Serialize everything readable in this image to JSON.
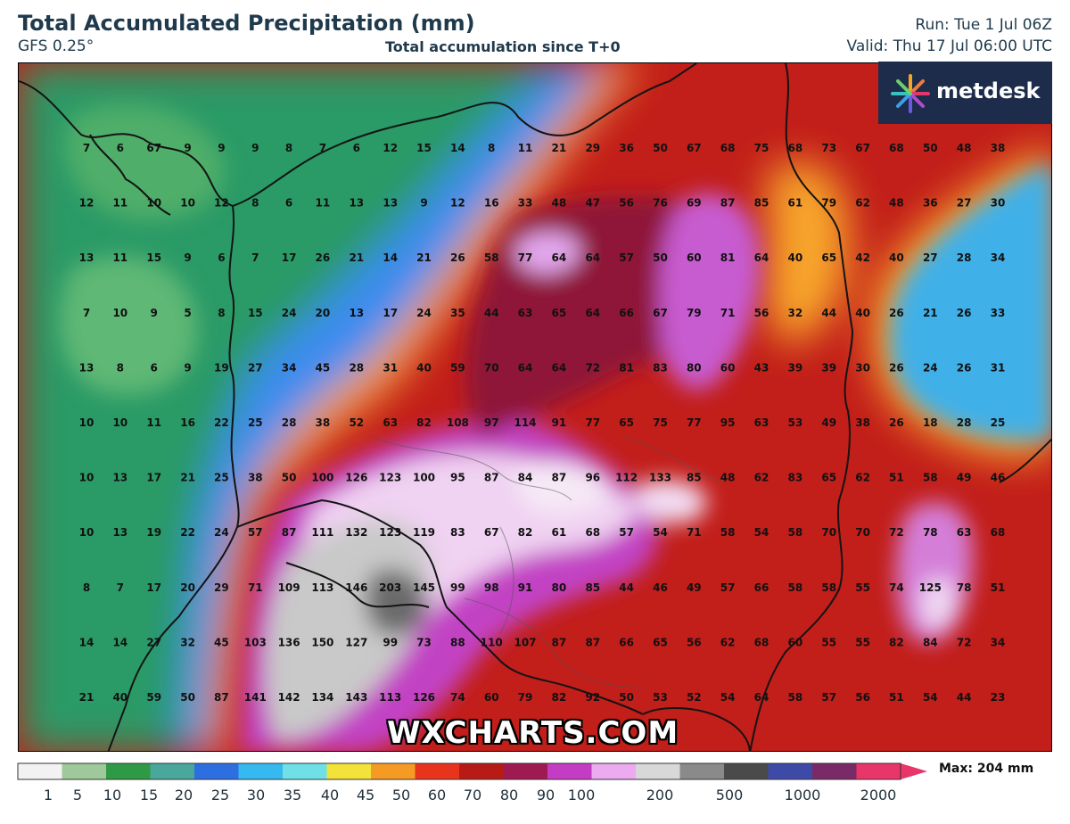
{
  "header": {
    "title": "Total Accumulated Precipitation (mm)",
    "model": "GFS 0.25°",
    "subtitle": "Total accumulation since T+0",
    "run": "Run: Tue 1 Jul 06Z",
    "valid": "Valid: Thu 17 Jul 06:00 UTC"
  },
  "brand": {
    "logo_text": "metdesk",
    "logo_icon": "sparkle-dots-icon",
    "watermark": "WXCHARTS.COM"
  },
  "legend": {
    "ticks": [
      "1",
      "5",
      "10",
      "15",
      "20",
      "25",
      "30",
      "35",
      "40",
      "45",
      "50",
      "60",
      "70",
      "80",
      "90",
      "100",
      "200",
      "500",
      "1000",
      "2000"
    ],
    "max_label": "Max: 204 mm",
    "colors": [
      "#f2f2f2",
      "#9fc99a",
      "#2f9a46",
      "#4aa79b",
      "#2d6fe0",
      "#35b9f0",
      "#6fe0e6",
      "#f3e23a",
      "#f59b24",
      "#e8341c",
      "#b81a16",
      "#a01a52",
      "#c43cc4",
      "#ecaaf0",
      "#d8d8d8",
      "#8a8a8a",
      "#4a4a4a",
      "#3d4aa8",
      "#7a2a66",
      "#e8356a"
    ]
  },
  "grid": {
    "rows": [
      [
        "7",
        "6",
        "67",
        "9",
        "9",
        "9",
        "8",
        "7",
        "6",
        "12",
        "15",
        "14",
        "8",
        "11",
        "21",
        "29",
        "36",
        "50",
        "67",
        "68",
        "75",
        "68",
        "73",
        "67",
        "68",
        "50",
        "48",
        "38"
      ],
      [
        "12",
        "11",
        "10",
        "10",
        "12",
        "8",
        "6",
        "11",
        "13",
        "13",
        "9",
        "12",
        "16",
        "33",
        "48",
        "47",
        "56",
        "76",
        "69",
        "87",
        "85",
        "61",
        "79",
        "62",
        "48",
        "36",
        "27",
        "30"
      ],
      [
        "13",
        "11",
        "15",
        "9",
        "6",
        "7",
        "17",
        "26",
        "21",
        "14",
        "21",
        "26",
        "58",
        "77",
        "64",
        "64",
        "57",
        "50",
        "60",
        "81",
        "64",
        "40",
        "65",
        "42",
        "40",
        "27",
        "28",
        "34"
      ],
      [
        "7",
        "10",
        "9",
        "5",
        "8",
        "15",
        "24",
        "20",
        "13",
        "17",
        "24",
        "35",
        "44",
        "63",
        "65",
        "64",
        "66",
        "67",
        "79",
        "71",
        "56",
        "32",
        "44",
        "40",
        "26",
        "21",
        "26",
        "33"
      ],
      [
        "13",
        "8",
        "6",
        "9",
        "19",
        "27",
        "34",
        "45",
        "28",
        "31",
        "40",
        "59",
        "70",
        "64",
        "64",
        "72",
        "81",
        "83",
        "80",
        "60",
        "43",
        "39",
        "39",
        "30",
        "26",
        "24",
        "26",
        "31"
      ],
      [
        "10",
        "10",
        "11",
        "16",
        "22",
        "25",
        "28",
        "38",
        "52",
        "63",
        "82",
        "108",
        "97",
        "114",
        "91",
        "77",
        "65",
        "75",
        "77",
        "95",
        "63",
        "53",
        "49",
        "38",
        "26",
        "18",
        "28",
        "25"
      ],
      [
        "10",
        "13",
        "17",
        "21",
        "25",
        "38",
        "50",
        "100",
        "126",
        "123",
        "100",
        "95",
        "87",
        "84",
        "87",
        "96",
        "112",
        "133",
        "85",
        "48",
        "62",
        "83",
        "65",
        "62",
        "51",
        "58",
        "49",
        "46"
      ],
      [
        "10",
        "13",
        "19",
        "22",
        "24",
        "57",
        "87",
        "111",
        "132",
        "123",
        "119",
        "83",
        "67",
        "82",
        "61",
        "68",
        "57",
        "54",
        "71",
        "58",
        "54",
        "58",
        "70",
        "70",
        "72",
        "78",
        "63",
        "68"
      ],
      [
        "8",
        "7",
        "17",
        "20",
        "29",
        "71",
        "109",
        "113",
        "146",
        "203",
        "145",
        "99",
        "98",
        "91",
        "80",
        "85",
        "44",
        "46",
        "49",
        "57",
        "66",
        "58",
        "58",
        "55",
        "74",
        "125",
        "78",
        "51"
      ],
      [
        "14",
        "14",
        "27",
        "32",
        "45",
        "103",
        "136",
        "150",
        "127",
        "99",
        "73",
        "88",
        "110",
        "107",
        "87",
        "87",
        "66",
        "65",
        "56",
        "62",
        "68",
        "60",
        "55",
        "55",
        "82",
        "84",
        "72",
        "34"
      ],
      [
        "21",
        "40",
        "59",
        "50",
        "87",
        "141",
        "142",
        "134",
        "143",
        "113",
        "126",
        "74",
        "60",
        "79",
        "82",
        "92",
        "50",
        "53",
        "52",
        "54",
        "64",
        "58",
        "57",
        "56",
        "51",
        "54",
        "44",
        "23"
      ]
    ]
  }
}
